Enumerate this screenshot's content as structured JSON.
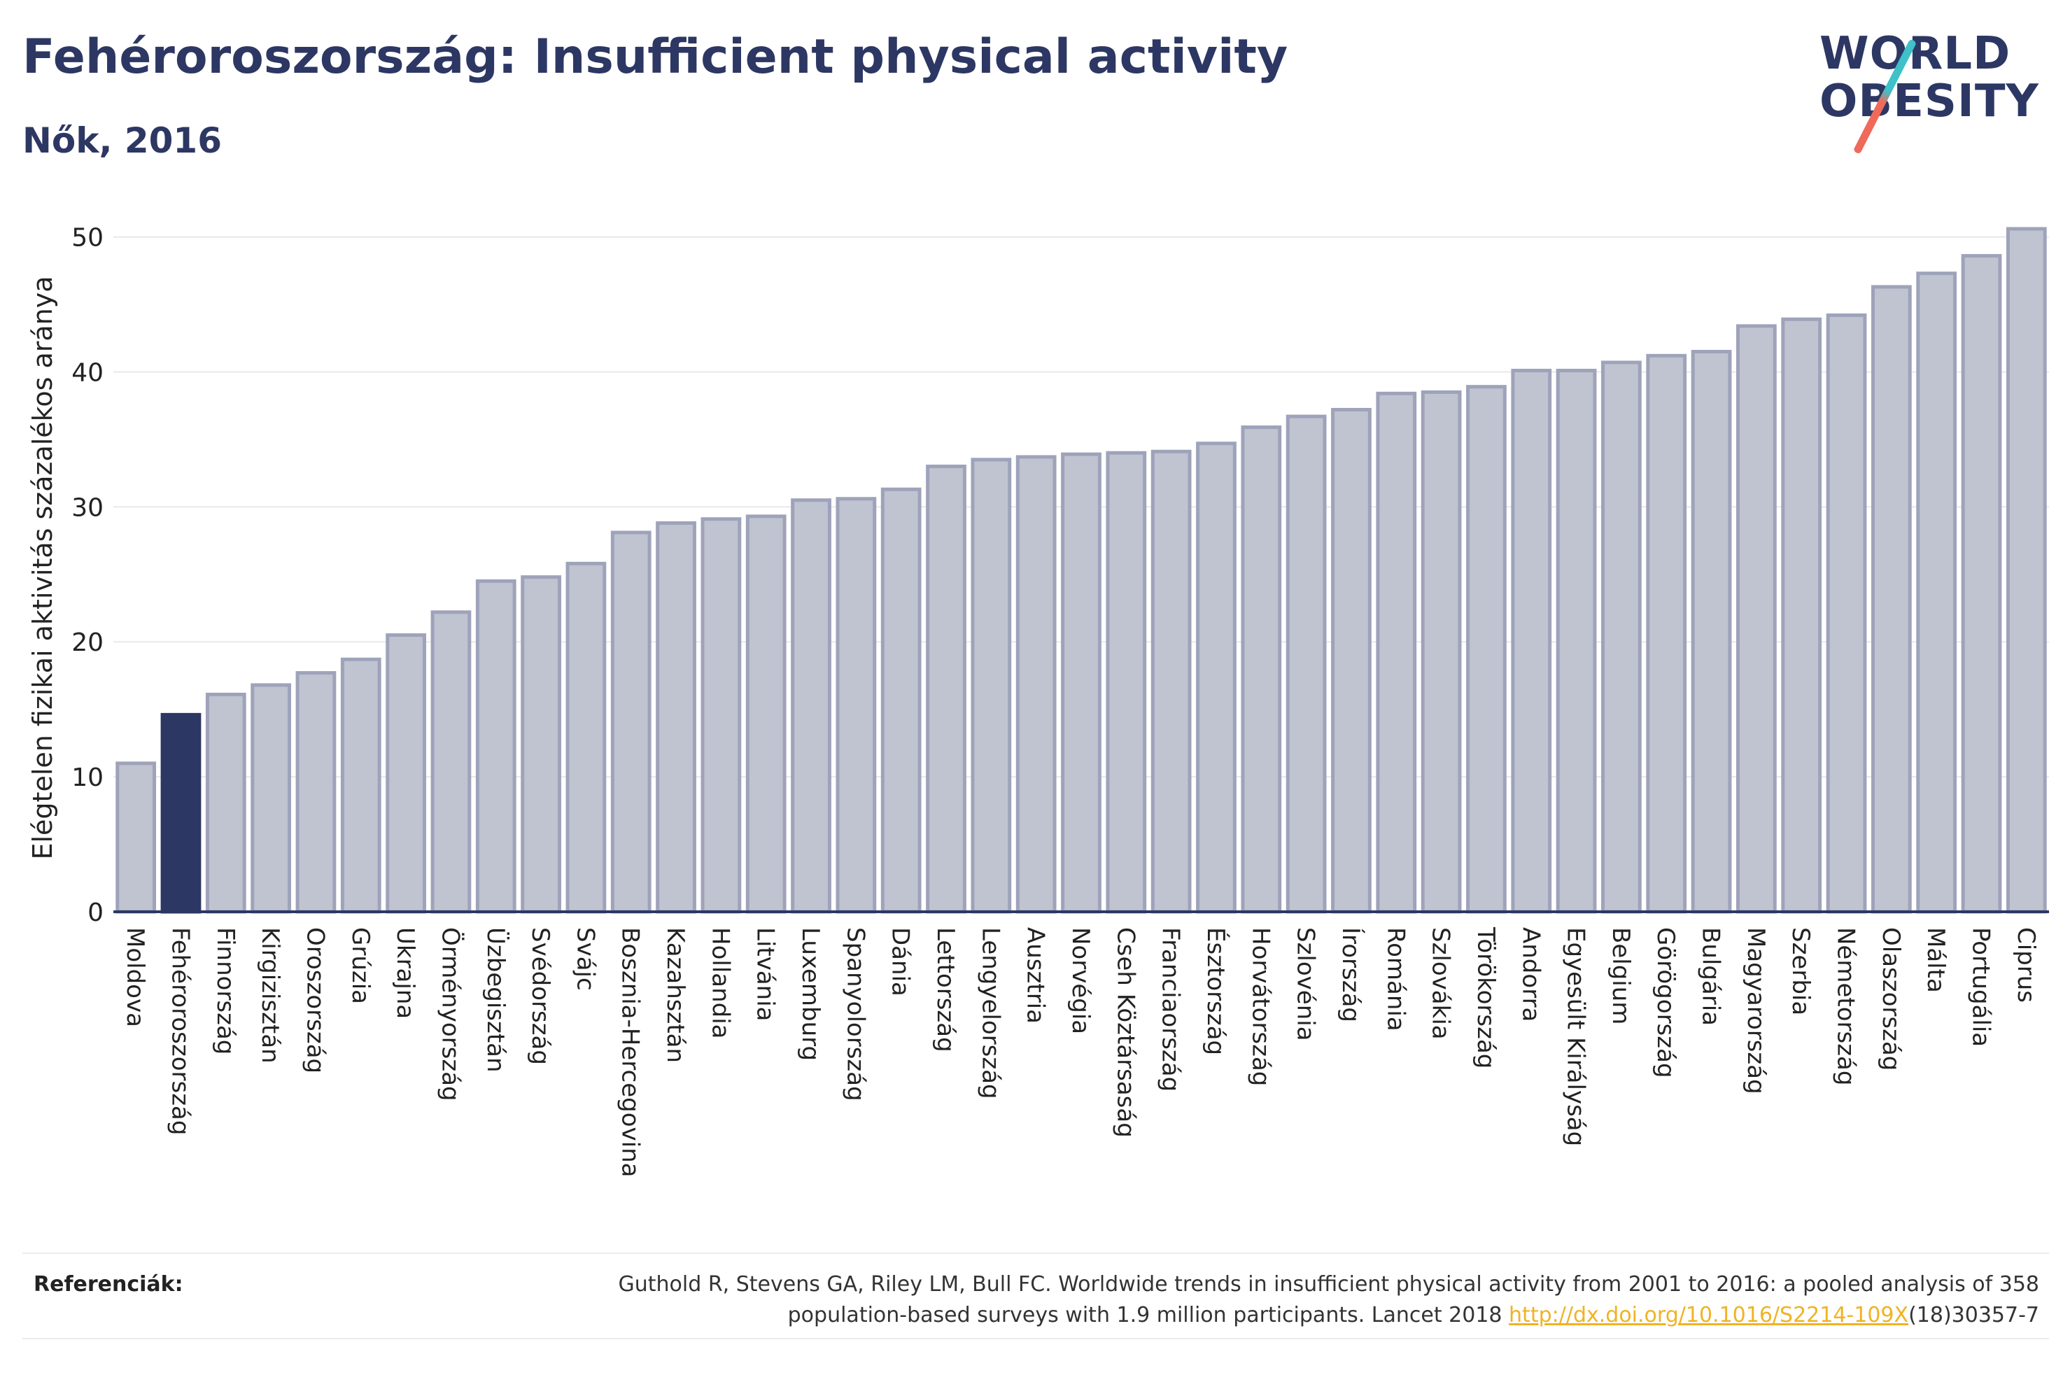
{
  "header": {
    "title": "Fehéroroszország: Insufficient physical activity",
    "subtitle": "Nők, 2016"
  },
  "logo": {
    "line1": "WORLD",
    "line2": "OBESITY",
    "slash_colors": [
      "#3ec1c9",
      "#ef6a5a"
    ]
  },
  "chart_data": {
    "type": "bar",
    "ylabel": "Elégtelen fizikai aktivitás százalékos aránya",
    "ylim": [
      0,
      52
    ],
    "yticks": [
      0,
      10,
      20,
      30,
      40,
      50
    ],
    "grid": true,
    "highlight": "Fehéroroszország",
    "colors": {
      "bar": "#c0c3d0",
      "bar_edge": "#9ea3ba",
      "highlight": "#2d3763",
      "axis": "#2d3763",
      "grid": "#e8e8e8"
    },
    "categories": [
      "Moldova",
      "Fehéroroszország",
      "Finnország",
      "Kirgizisztán",
      "Oroszország",
      "Grúzia",
      "Ukrajna",
      "Örményország",
      "Üzbegisztán",
      "Svédország",
      "Svájc",
      "Bosznia-Hercegovina",
      "Kazahsztán",
      "Hollandia",
      "Litvánia",
      "Luxemburg",
      "Spanyolország",
      "Dánia",
      "Lettország",
      "Lengyelország",
      "Ausztria",
      "Norvégia",
      "Cseh Köztársaság",
      "Franciaország",
      "Észtország",
      "Horvátország",
      "Szlovénia",
      "Írország",
      "Románia",
      "Szlovákia",
      "Törökország",
      "Andorra",
      "Egyesült Királyság",
      "Belgium",
      "Görögország",
      "Bulgária",
      "Magyarország",
      "Szerbia",
      "Németország",
      "Olaszország",
      "Málta",
      "Portugália",
      "Ciprus"
    ],
    "values": [
      11.0,
      14.6,
      16.1,
      16.8,
      17.7,
      18.7,
      20.5,
      22.2,
      24.5,
      24.8,
      25.8,
      28.1,
      28.8,
      29.1,
      29.3,
      30.5,
      30.6,
      31.3,
      33.0,
      33.5,
      33.7,
      33.9,
      34.0,
      34.1,
      34.7,
      35.9,
      36.7,
      37.2,
      38.4,
      38.5,
      38.9,
      40.1,
      40.1,
      40.7,
      41.2,
      41.5,
      43.4,
      43.9,
      44.2,
      46.3,
      47.3,
      48.6,
      50.6
    ]
  },
  "references": {
    "label": "Referenciák:",
    "text_line1": "Guthold R, Stevens GA, Riley LM, Bull FC. Worldwide trends in insufficient physical activity from 2001 to 2016: a pooled analysis of 358",
    "text_line2_pre": "population-based surveys with 1.9 million participants. Lancet 2018 ",
    "link": "http://dx.doi.org/10.1016/S2214-109X",
    "text_line2_post": "(18)30357-7"
  }
}
